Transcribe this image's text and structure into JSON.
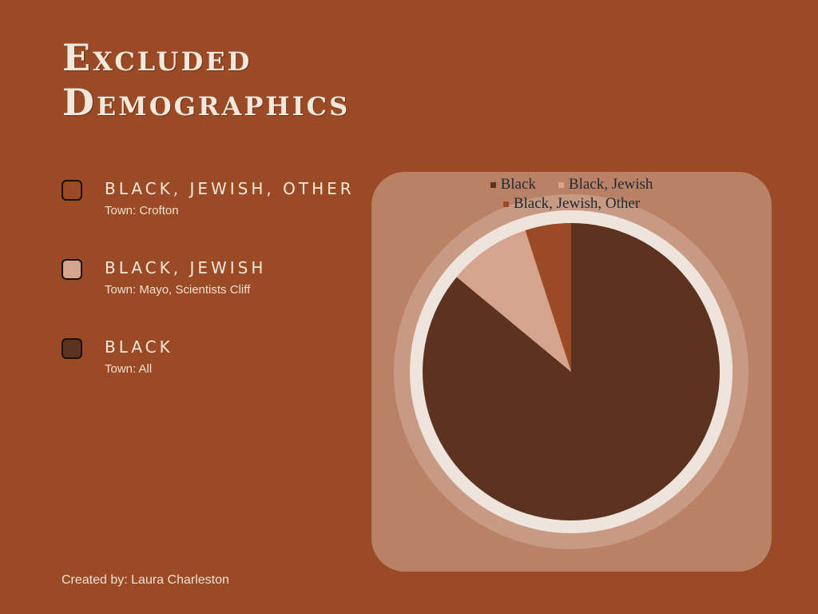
{
  "page": {
    "title_lines": [
      "Excluded",
      "Demographics"
    ],
    "credit": "Created by: Laura Charleston"
  },
  "legend_rows": [
    {
      "label": "BLACK, JEWISH, OTHER",
      "sub": "Town: Crofton",
      "color": "#9a4a24"
    },
    {
      "label": "BLACK, JEWISH",
      "sub": "Town: Mayo, Scientists Cliff",
      "color": "#d6a48d"
    },
    {
      "label": "BLACK",
      "sub": "Town: All",
      "color": "#5c3320"
    }
  ],
  "chart_data": {
    "type": "pie",
    "labels": [
      "Black",
      "Black, Jewish",
      "Black, Jewish, Other"
    ],
    "values": [
      86,
      9,
      5
    ],
    "colors": [
      "#5c3320",
      "#d6a48d",
      "#9a4a24"
    ],
    "legend_position": "top"
  }
}
